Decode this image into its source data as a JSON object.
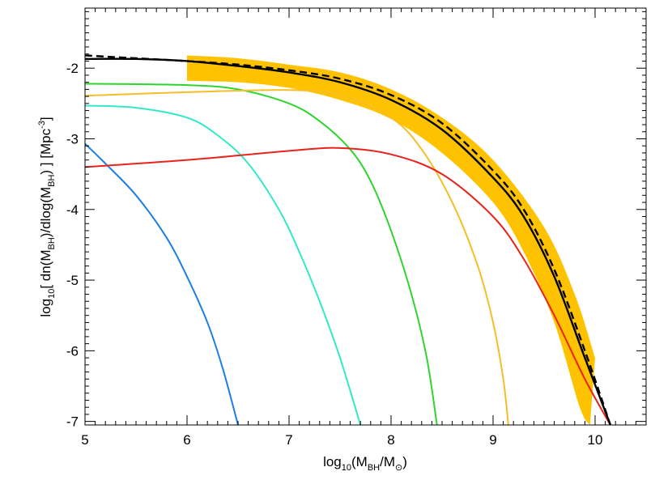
{
  "chart_data": {
    "type": "line",
    "xlim": [
      5,
      10.5
    ],
    "ylim": [
      -7.05,
      -1.15
    ],
    "x_ticks": [
      5,
      6,
      7,
      8,
      9,
      10
    ],
    "y_ticks": [
      -7,
      -6,
      -5,
      -4,
      -3,
      -2
    ],
    "x_tick_labels": [
      "5",
      "6",
      "7",
      "8",
      "9",
      "10"
    ],
    "y_tick_labels": [
      "-7",
      "-6",
      "-5",
      "-4",
      "-3",
      "-2"
    ],
    "xlabel": {
      "prefix": "log",
      "prefix_sub": "10",
      "open": "(M",
      "sub1": "BH",
      "slash": "/M",
      "sub2": "⊙",
      "close": ")"
    },
    "ylabel": {
      "prefix": "log",
      "prefix_sub": "10",
      "part1": "[ dn(M",
      "sub1": "BH",
      "part2": ")/dlog(M",
      "sub2": "BH",
      "part3": ") ]  [Mpc",
      "sup": "-3",
      "part4": "]"
    },
    "band": {
      "color": "#ffc200",
      "upper": [
        [
          6.0,
          -1.82
        ],
        [
          6.5,
          -1.86
        ],
        [
          7.0,
          -1.95
        ],
        [
          7.5,
          -2.06
        ],
        [
          8.0,
          -2.3
        ],
        [
          8.5,
          -2.7
        ],
        [
          9.0,
          -3.3
        ],
        [
          9.5,
          -4.25
        ],
        [
          9.8,
          -5.2
        ],
        [
          10.0,
          -6.1
        ]
      ],
      "lower": [
        [
          6.0,
          -2.18
        ],
        [
          6.5,
          -2.2
        ],
        [
          7.0,
          -2.28
        ],
        [
          7.5,
          -2.45
        ],
        [
          8.0,
          -2.72
        ],
        [
          8.5,
          -3.2
        ],
        [
          9.0,
          -3.9
        ],
        [
          9.3,
          -4.6
        ],
        [
          9.6,
          -5.6
        ],
        [
          9.85,
          -6.8
        ],
        [
          9.95,
          -7.05
        ]
      ]
    },
    "series": [
      {
        "color": "#1a7ee6",
        "style": "solid",
        "points": [
          [
            5.0,
            -3.07
          ],
          [
            5.2,
            -3.35
          ],
          [
            5.5,
            -3.8
          ],
          [
            5.8,
            -4.4
          ],
          [
            6.0,
            -4.95
          ],
          [
            6.2,
            -5.6
          ],
          [
            6.35,
            -6.25
          ],
          [
            6.5,
            -7.05
          ]
        ]
      },
      {
        "color": "#33e8c8",
        "style": "solid",
        "points": [
          [
            5.0,
            -2.53
          ],
          [
            5.5,
            -2.56
          ],
          [
            6.0,
            -2.7
          ],
          [
            6.3,
            -2.95
          ],
          [
            6.6,
            -3.35
          ],
          [
            6.9,
            -4.0
          ],
          [
            7.1,
            -4.6
          ],
          [
            7.3,
            -5.3
          ],
          [
            7.5,
            -6.1
          ],
          [
            7.7,
            -7.05
          ]
        ]
      },
      {
        "color": "#2fd52f",
        "style": "solid",
        "points": [
          [
            5.0,
            -2.22
          ],
          [
            6.0,
            -2.24
          ],
          [
            6.5,
            -2.3
          ],
          [
            7.0,
            -2.5
          ],
          [
            7.3,
            -2.75
          ],
          [
            7.6,
            -3.15
          ],
          [
            7.8,
            -3.6
          ],
          [
            8.0,
            -4.3
          ],
          [
            8.2,
            -5.2
          ],
          [
            8.35,
            -6.1
          ],
          [
            8.45,
            -7.05
          ]
        ]
      },
      {
        "color": "#f5be25",
        "style": "solid",
        "points": [
          [
            5.0,
            -2.39
          ],
          [
            6.0,
            -2.34
          ],
          [
            7.0,
            -2.31
          ],
          [
            7.5,
            -2.38
          ],
          [
            8.0,
            -2.7
          ],
          [
            8.3,
            -3.15
          ],
          [
            8.6,
            -3.9
          ],
          [
            8.85,
            -4.8
          ],
          [
            9.0,
            -5.6
          ],
          [
            9.1,
            -6.4
          ],
          [
            9.15,
            -7.05
          ]
        ]
      },
      {
        "color": "#e8231a",
        "style": "solid",
        "points": [
          [
            5.0,
            -3.4
          ],
          [
            6.0,
            -3.3
          ],
          [
            7.0,
            -3.17
          ],
          [
            7.5,
            -3.13
          ],
          [
            8.0,
            -3.22
          ],
          [
            8.5,
            -3.5
          ],
          [
            9.0,
            -4.1
          ],
          [
            9.3,
            -4.7
          ],
          [
            9.6,
            -5.5
          ],
          [
            9.9,
            -6.4
          ],
          [
            10.15,
            -7.05
          ]
        ]
      },
      {
        "color": "#000000",
        "style": "dashed",
        "points": [
          [
            5.0,
            -1.82
          ],
          [
            5.5,
            -1.86
          ],
          [
            6.0,
            -1.9
          ],
          [
            6.5,
            -1.95
          ],
          [
            7.0,
            -2.03
          ],
          [
            7.5,
            -2.15
          ],
          [
            8.0,
            -2.38
          ],
          [
            8.5,
            -2.78
          ],
          [
            9.0,
            -3.45
          ],
          [
            9.3,
            -4.0
          ],
          [
            9.6,
            -4.85
          ],
          [
            9.9,
            -6.0
          ],
          [
            10.15,
            -7.05
          ]
        ]
      },
      {
        "color": "#000000",
        "style": "solid",
        "points": [
          [
            5.0,
            -1.87
          ],
          [
            5.5,
            -1.87
          ],
          [
            6.0,
            -1.9
          ],
          [
            6.5,
            -1.97
          ],
          [
            7.0,
            -2.06
          ],
          [
            7.5,
            -2.2
          ],
          [
            8.0,
            -2.45
          ],
          [
            8.5,
            -2.87
          ],
          [
            9.0,
            -3.55
          ],
          [
            9.3,
            -4.1
          ],
          [
            9.6,
            -4.95
          ],
          [
            9.9,
            -6.1
          ],
          [
            10.15,
            -7.05
          ]
        ]
      }
    ]
  }
}
